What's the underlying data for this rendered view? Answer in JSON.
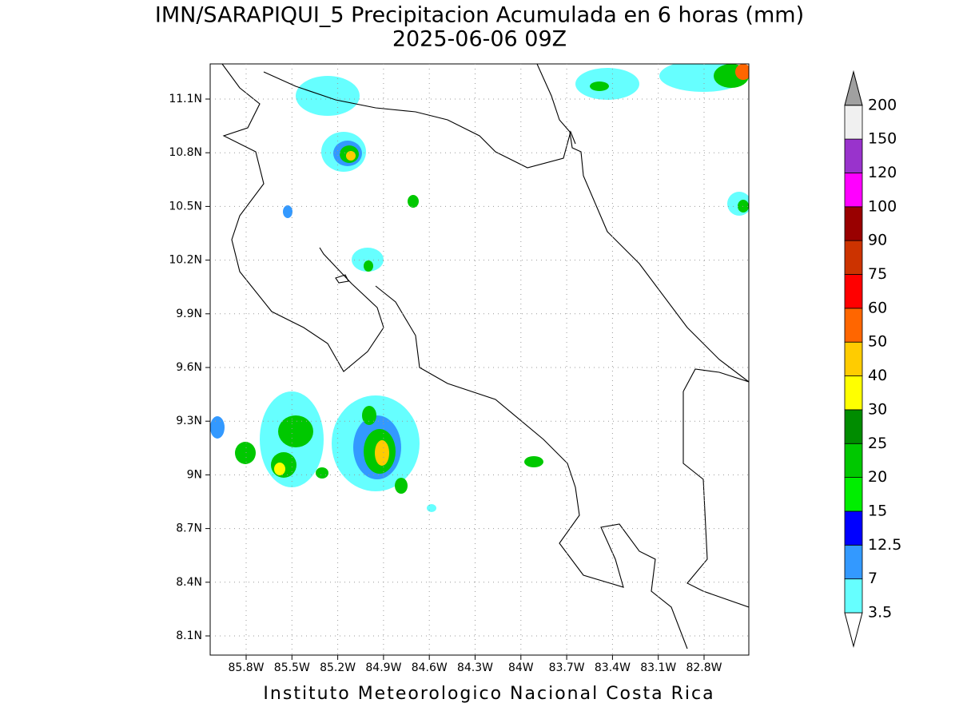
{
  "title": "IMN/SARAPIQUI_5 Precipitacion Acumulada en 6 horas (mm)",
  "subtitle": "2025-06-06 09Z",
  "footer": "Instituto Meteorologico Nacional Costa Rica",
  "map": {
    "lat_labels": [
      "11.1N",
      "10.8N",
      "10.5N",
      "10.2N",
      "9.9N",
      "9.6N",
      "9.3N",
      "9N",
      "8.7N",
      "8.4N",
      "8.1N"
    ],
    "lon_labels": [
      "85.8W",
      "85.5W",
      "85.2W",
      "84.9W",
      "84.6W",
      "84.3W",
      "84W",
      "83.7W",
      "83.4W",
      "83.1W",
      "82.8W"
    ],
    "grid": true
  },
  "colorbar": {
    "levels": [
      3.5,
      7,
      12.5,
      15,
      20,
      25,
      30,
      40,
      50,
      60,
      75,
      90,
      100,
      120,
      150,
      200
    ],
    "colors": [
      "#66ffff",
      "#3399ff",
      "#0000ff",
      "#00ee00",
      "#00c800",
      "#008c00",
      "#ffff00",
      "#ffcc00",
      "#ff6600",
      "#ff0000",
      "#cc3300",
      "#990000",
      "#ff00ff",
      "#9933cc",
      "#f0f0f0"
    ],
    "above_color": "#a0a0a0",
    "below_color": "#ffffff"
  }
}
